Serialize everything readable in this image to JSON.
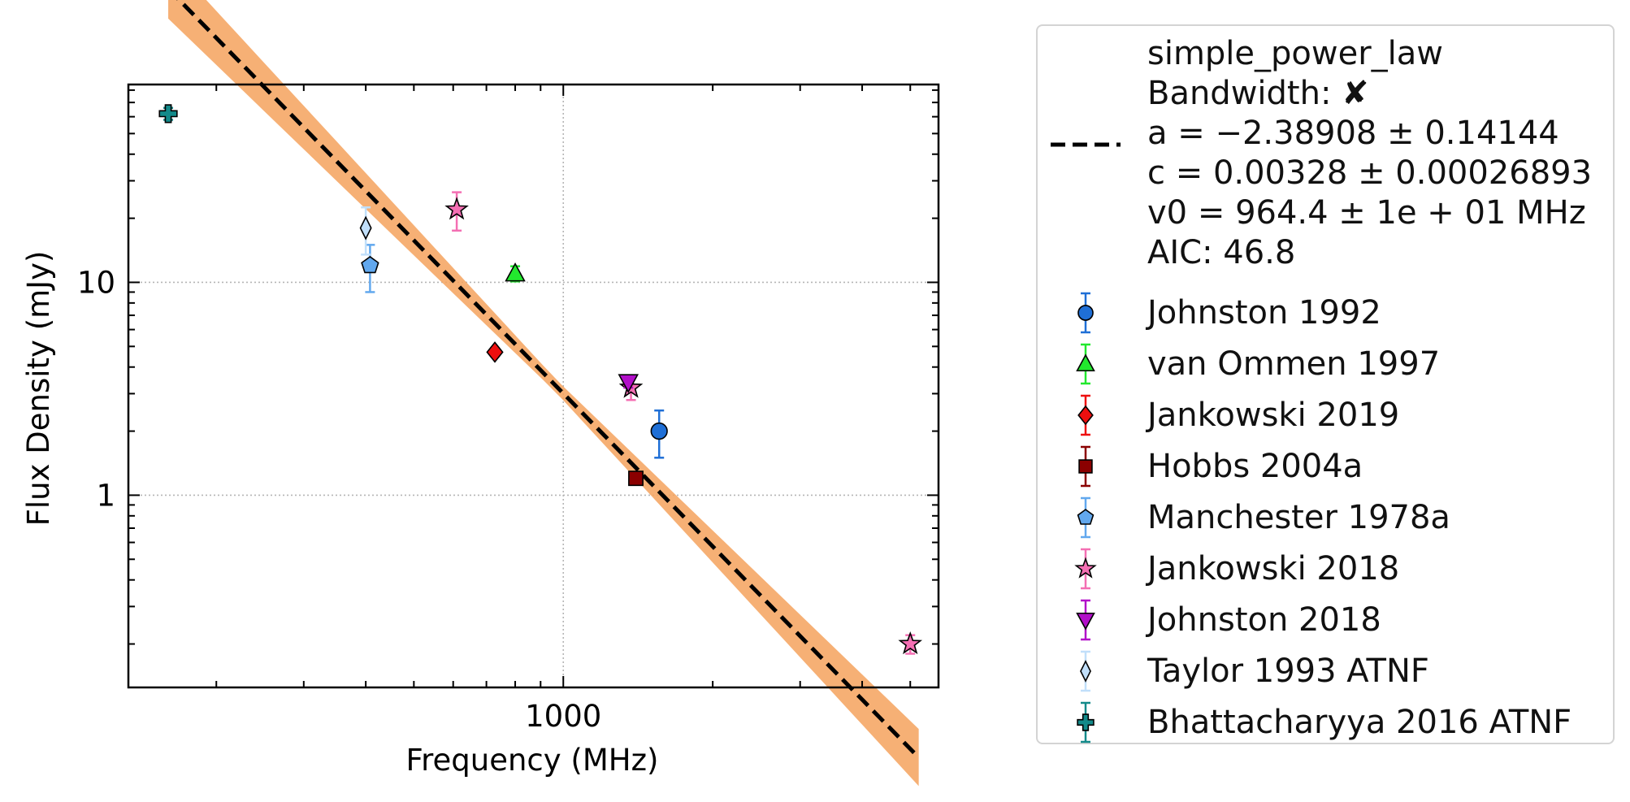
{
  "chart_data": {
    "type": "scatter",
    "xlabel": "Frequency (MHz)",
    "ylabel": "Flux Density (mJy)",
    "xscale": "log",
    "yscale": "log",
    "xlim": [
      133,
      5700
    ],
    "ylim": [
      0.125,
      85
    ],
    "xticks": [
      {
        "value": 1000,
        "label": "1000"
      }
    ],
    "yticks": [
      {
        "value": 1,
        "label": "1"
      },
      {
        "value": 10,
        "label": "10"
      }
    ],
    "grid": true,
    "legend_position": "outside-right",
    "fit": {
      "label_lines": [
        "simple_power_law",
        "Bandwidth: ✘",
        "a = −2.38908 ± 0.14144",
        "c = 0.00328 ± 0.00026893",
        "v0 = 964.4 ± 1e + 01 MHz",
        "AIC: 46.8"
      ],
      "a": -2.38908,
      "a_err": 0.14144,
      "c": 0.00328,
      "v0": 964.4,
      "x_range": [
        160,
        5200
      ],
      "color": "#000000",
      "band_color": "#f5a25d"
    },
    "series": [
      {
        "name": "Johnston 1992",
        "marker": "circle",
        "color": "#1f6fd6",
        "points": [
          {
            "x": 1560,
            "y": 2.0,
            "err": 0.5
          }
        ]
      },
      {
        "name": "van Ommen 1997",
        "marker": "triangle-up",
        "color": "#22e82e",
        "points": [
          {
            "x": 800,
            "y": 11.0,
            "err": 0.9
          }
        ]
      },
      {
        "name": "Jankowski 2019",
        "marker": "diamond",
        "color": "#ee0f0f",
        "points": [
          {
            "x": 728,
            "y": 4.7,
            "err": 0.2
          }
        ]
      },
      {
        "name": "Hobbs 2004a",
        "marker": "square",
        "color": "#8b0000",
        "points": [
          {
            "x": 1400,
            "y": 1.2,
            "err": 0.06
          }
        ]
      },
      {
        "name": "Manchester 1978a",
        "marker": "pentagon",
        "color": "#62a8ee",
        "points": [
          {
            "x": 408,
            "y": 12.0,
            "err": 3.0
          }
        ]
      },
      {
        "name": "Jankowski 2018",
        "marker": "star",
        "color": "#f46fb3",
        "points": [
          {
            "x": 610,
            "y": 22.0,
            "err": 4.5
          },
          {
            "x": 1369,
            "y": 3.2,
            "err": 0.4
          },
          {
            "x": 5000,
            "y": 0.2,
            "err": 0.02
          }
        ]
      },
      {
        "name": "Johnston 2018",
        "marker": "triangle-down",
        "color": "#b20fc9",
        "points": [
          {
            "x": 1352,
            "y": 3.4,
            "err": 0.2
          }
        ]
      },
      {
        "name": "Taylor 1993 ATNF",
        "marker": "thin-diamond",
        "color": "#c1dffa",
        "points": [
          {
            "x": 400,
            "y": 18.0,
            "err": 4.5
          }
        ]
      },
      {
        "name": "Bhattacharyya 2016 ATNF",
        "marker": "plus-filled",
        "color": "#138a8a",
        "points": [
          {
            "x": 160,
            "y": 62.0,
            "err": 4.0
          }
        ]
      }
    ]
  }
}
